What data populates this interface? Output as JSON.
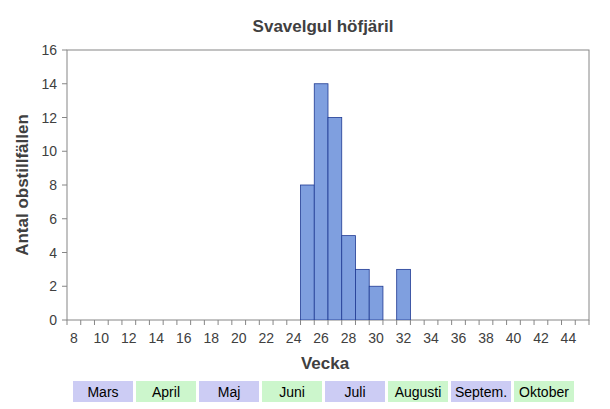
{
  "chart_data": {
    "type": "bar",
    "title": "Svavelgul höfjäril",
    "x_label": "Vecka",
    "y_label": "Antal obstillfällen",
    "categories": [
      8,
      null,
      10,
      null,
      12,
      null,
      14,
      null,
      16,
      null,
      18,
      null,
      20,
      null,
      22,
      null,
      24,
      null,
      26,
      null,
      28,
      null,
      30,
      null,
      32,
      null,
      34,
      null,
      36,
      null,
      38,
      null,
      40,
      null,
      42,
      null,
      44,
      null
    ],
    "values": [
      0,
      0,
      0,
      0,
      0,
      0,
      0,
      0,
      0,
      0,
      0,
      0,
      0,
      0,
      0,
      0,
      0,
      8,
      14,
      12,
      5,
      3,
      2,
      0,
      3,
      0,
      0,
      0,
      0,
      0,
      0,
      0,
      0,
      0,
      0,
      0,
      0,
      0
    ],
    "color": "#7f9fdf",
    "ylim": [
      0,
      16
    ],
    "yticks": [
      0,
      2,
      4,
      6,
      8,
      10,
      12,
      14,
      16
    ],
    "grid": false,
    "month_labels": [
      "Mars",
      "April",
      "Maj",
      "Juni",
      "Juli",
      "Augusti",
      "Septem.",
      "Oktober"
    ]
  }
}
